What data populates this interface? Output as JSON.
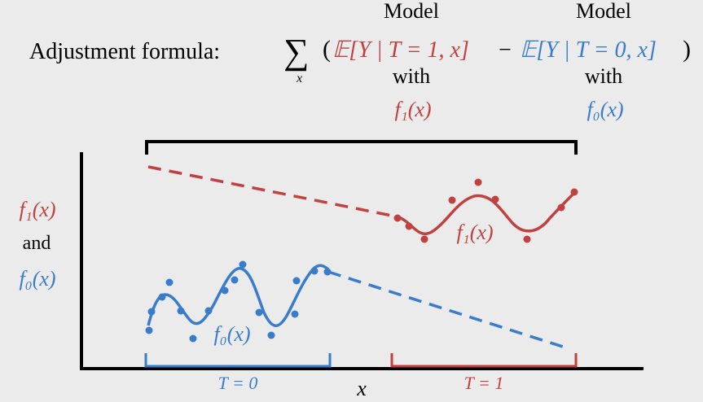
{
  "header": {
    "label": "Adjustment formula:",
    "sum_symbol": "∑",
    "sum_index": "x",
    "open_paren": "(",
    "close_paren": ")",
    "minus": "−",
    "term1": "𝔼[Y | T = 1, x]",
    "term0": "𝔼[Y | T = 0, x]",
    "model_word": "Model",
    "with_word": "with",
    "f1": "f₁(x)",
    "f0": "f₀(x)"
  },
  "ylabel": {
    "f1": "f₁(x)",
    "and": "and",
    "f0": "f₀(x)"
  },
  "xlabel": "x",
  "groups": {
    "t0": "T = 0",
    "t1": "T = 1"
  },
  "curve_labels": {
    "f1": "f₁(x)",
    "f0": "f₀(x)"
  },
  "colors": {
    "red": "#c0413f",
    "blue": "#3a7ccc",
    "black": "#000000",
    "background": "#ebebeb"
  }
}
